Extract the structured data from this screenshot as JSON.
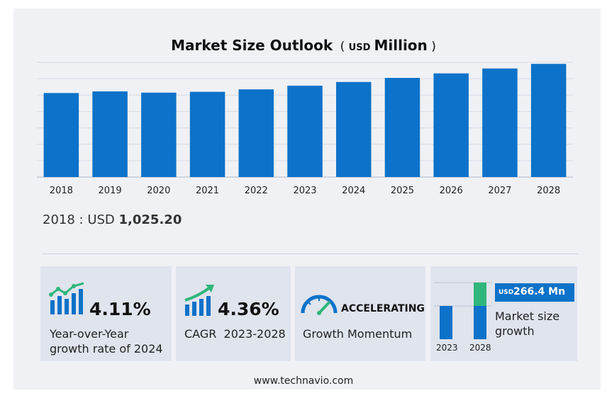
{
  "chart_data": {
    "type": "bar",
    "title": "Market Size Outlook",
    "unit_prefix": "USD",
    "unit": "Million",
    "categories": [
      "2018",
      "2019",
      "2020",
      "2021",
      "2022",
      "2023",
      "2024",
      "2025",
      "2026",
      "2027",
      "2028"
    ],
    "values": [
      1025.2,
      1045,
      1030,
      1040,
      1070,
      1115,
      1160,
      1210,
      1265,
      1325,
      1381
    ],
    "ylim": [
      0,
      1400
    ],
    "grid": true,
    "color": "#0d72c9"
  },
  "base_year": {
    "label": "2018 : USD",
    "value": "1,025.20"
  },
  "cards": {
    "yoy": {
      "value": "4.11%",
      "caption_line1": "Year-over-Year",
      "caption_line2": "growth rate of 2024",
      "icon": "bar-growth-icon"
    },
    "cagr": {
      "value": "4.36%",
      "caption": "CAGR  2023-2028",
      "icon": "bar-growth-icon"
    },
    "momentum": {
      "value": "ACCELERATING",
      "caption": "Growth Momentum",
      "icon": "speedometer-icon"
    },
    "market": {
      "badge_unit": "USD",
      "badge_value": "266.4 Mn",
      "caption_line1": "Market size",
      "caption_line2": "growth",
      "years": [
        "2023",
        "2028"
      ],
      "accent": "#2fb67c"
    }
  },
  "footer": "www.technavio.com"
}
